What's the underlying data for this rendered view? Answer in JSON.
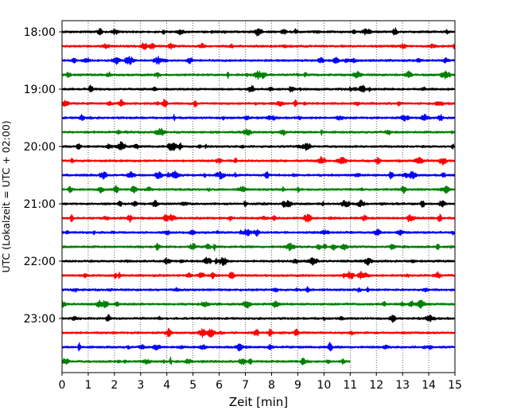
{
  "chart_data": {
    "type": "line",
    "title": "",
    "xlabel": "Zeit  [min]",
    "ylabel": "UTC (Lokalzeit = UTC + 02:00)",
    "xlim": [
      0,
      15
    ],
    "x_ticks": [
      "0",
      "1",
      "2",
      "3",
      "4",
      "5",
      "6",
      "7",
      "8",
      "9",
      "10",
      "11",
      "12",
      "13",
      "14",
      "15"
    ],
    "y_tick_labels": [
      "18:00",
      "19:00",
      "20:00",
      "21:00",
      "22:00",
      "23:00"
    ],
    "grid": "vertical dotted",
    "rows_per_hour": 4,
    "minutes_per_row": 15,
    "colors": [
      "#000000",
      "#ff0000",
      "#0000ff",
      "#008000"
    ],
    "traces": [
      {
        "time": "18:00",
        "color": "#000000",
        "length_min": 15
      },
      {
        "time": "18:15",
        "color": "#ff0000",
        "length_min": 15
      },
      {
        "time": "18:30",
        "color": "#0000ff",
        "length_min": 15
      },
      {
        "time": "18:45",
        "color": "#008000",
        "length_min": 15
      },
      {
        "time": "19:00",
        "color": "#000000",
        "length_min": 15
      },
      {
        "time": "19:15",
        "color": "#ff0000",
        "length_min": 15
      },
      {
        "time": "19:30",
        "color": "#0000ff",
        "length_min": 15
      },
      {
        "time": "19:45",
        "color": "#008000",
        "length_min": 15
      },
      {
        "time": "20:00",
        "color": "#000000",
        "length_min": 15
      },
      {
        "time": "20:15",
        "color": "#ff0000",
        "length_min": 15
      },
      {
        "time": "20:30",
        "color": "#0000ff",
        "length_min": 15
      },
      {
        "time": "20:45",
        "color": "#008000",
        "length_min": 15
      },
      {
        "time": "21:00",
        "color": "#000000",
        "length_min": 15
      },
      {
        "time": "21:15",
        "color": "#ff0000",
        "length_min": 15
      },
      {
        "time": "21:30",
        "color": "#0000ff",
        "length_min": 15
      },
      {
        "time": "21:45",
        "color": "#008000",
        "length_min": 15
      },
      {
        "time": "22:00",
        "color": "#000000",
        "length_min": 15
      },
      {
        "time": "22:15",
        "color": "#ff0000",
        "length_min": 15
      },
      {
        "time": "22:30",
        "color": "#0000ff",
        "length_min": 15
      },
      {
        "time": "22:45",
        "color": "#008000",
        "length_min": 15
      },
      {
        "time": "23:00",
        "color": "#000000",
        "length_min": 15
      },
      {
        "time": "23:15",
        "color": "#ff0000",
        "length_min": 15
      },
      {
        "time": "23:30",
        "color": "#0000ff",
        "length_min": 15
      },
      {
        "time": "23:45",
        "color": "#008000",
        "length_min": 11
      }
    ]
  }
}
